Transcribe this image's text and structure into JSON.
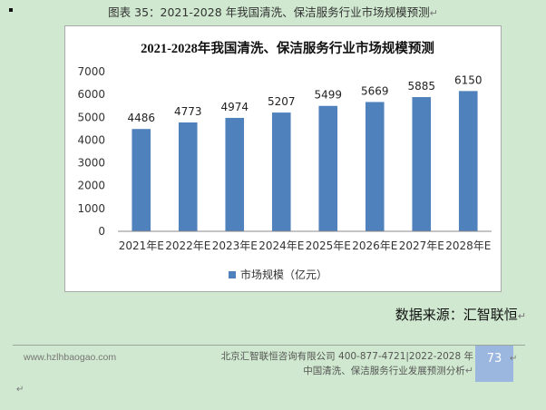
{
  "page": {
    "caption": "图表 35：2021-2028 年我国清洗、保洁服务行业市场规模预测",
    "para_mark": "↵",
    "source": "数据来源：汇智联恒",
    "site": "www.hzlhbaogao.com",
    "company_line1": "北京汇智联恒咨询有限公司  400-877-4721|2022-2028 年",
    "company_line2": "中国清洗、保洁服务行业发展预测分析",
    "page_number": "73"
  },
  "chart_data": {
    "type": "bar",
    "title": "2021-2028年我国清洗、保洁服务行业市场规模预测",
    "categories": [
      "2021年E",
      "2022年E",
      "2023年E",
      "2024年E",
      "2025年E",
      "2026年E",
      "2027年E",
      "2028年E"
    ],
    "series": [
      {
        "name": "市场规模（亿元）",
        "values": [
          4486,
          4773,
          4974,
          5207,
          5499,
          5669,
          5885,
          6150
        ]
      }
    ],
    "ylim": [
      0,
      7000
    ],
    "yticks": [
      0,
      1000,
      2000,
      3000,
      4000,
      5000,
      6000,
      7000
    ],
    "grid": false,
    "legend": "bottom",
    "bar_color": "#4f81bd"
  }
}
